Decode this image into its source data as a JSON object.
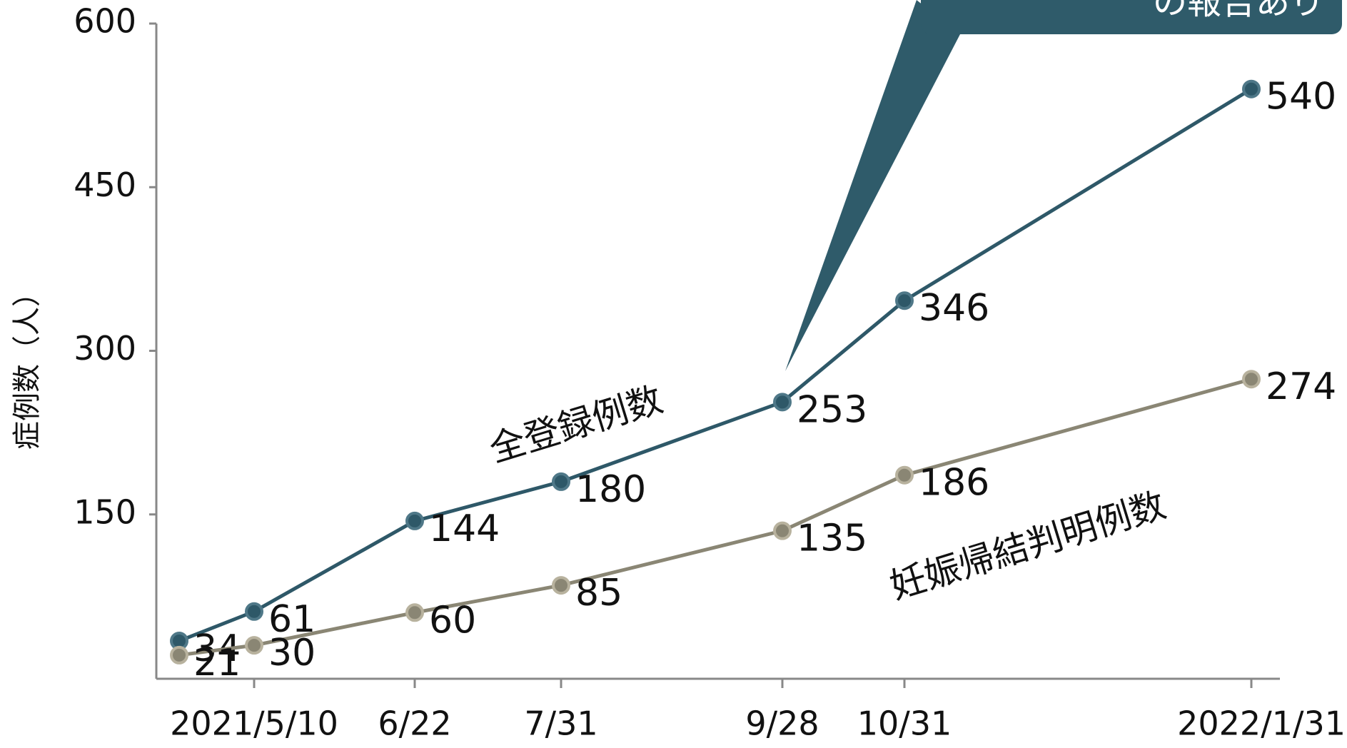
{
  "chart_data": {
    "type": "line",
    "y_label": "症例数（人）",
    "annotation": "の報告あり",
    "categories": [
      null,
      "2021/5/10",
      "6/22",
      "7/31",
      "9/28",
      "10/31",
      "2022/1/31"
    ],
    "series": [
      {
        "name": "全登録例数",
        "color": "#2e5868",
        "values": [
          34,
          61,
          144,
          180,
          253,
          346,
          540
        ]
      },
      {
        "name": "妊娠帰結判明例数",
        "color": "#8a8674",
        "values": [
          21,
          30,
          60,
          85,
          135,
          186,
          274
        ]
      }
    ],
    "ylim": [
      0,
      600
    ],
    "yticks": [
      150,
      300,
      450,
      600
    ],
    "grid": false
  }
}
